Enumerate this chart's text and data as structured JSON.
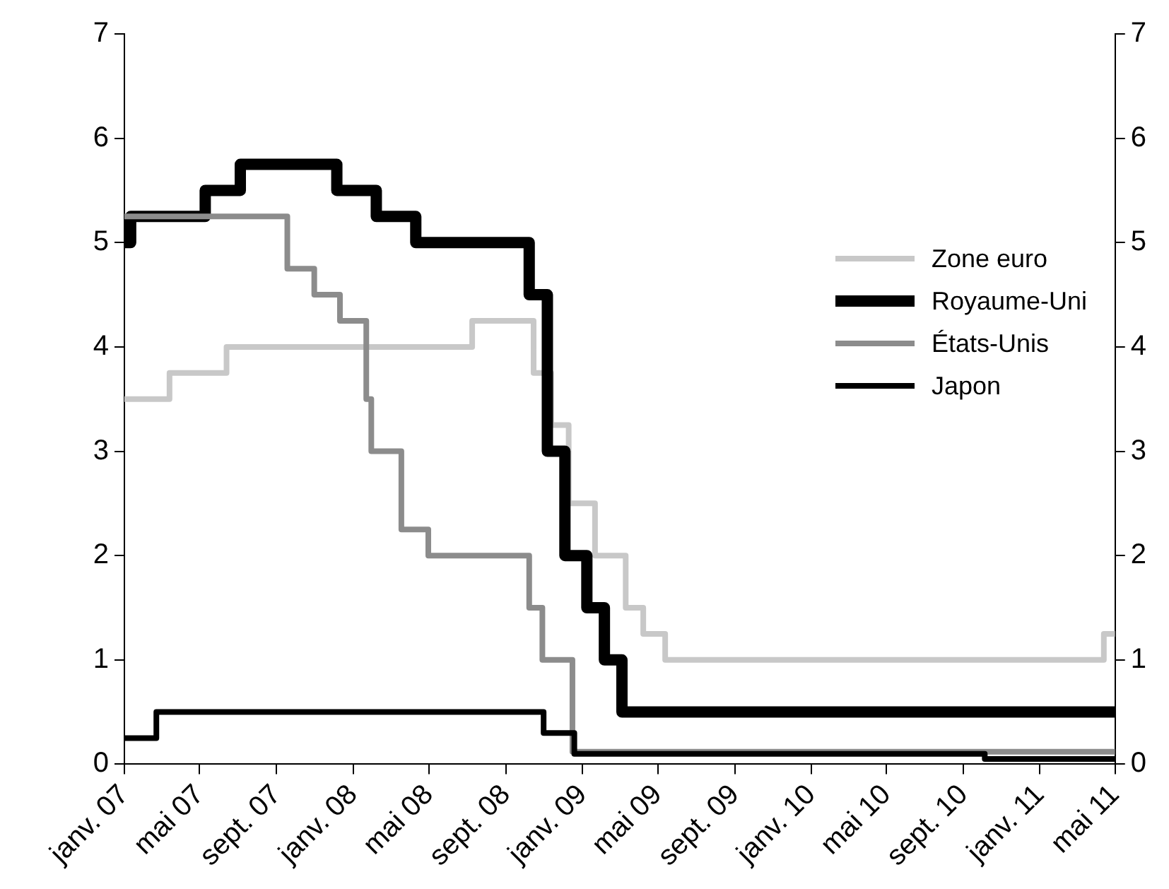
{
  "chart_data": {
    "type": "step",
    "legend": "top right",
    "grid": false,
    "marker": "none",
    "line_style": "solid",
    "xlim": [
      "2007-01-01",
      "2011-05-01"
    ],
    "xticks": [
      {
        "value": "2007-01-01",
        "label": "janv. 07"
      },
      {
        "value": "2007-05-01",
        "label": "mai 07"
      },
      {
        "value": "2007-09-01",
        "label": "sept. 07"
      },
      {
        "value": "2008-01-01",
        "label": "janv. 08"
      },
      {
        "value": "2008-05-01",
        "label": "mai 08"
      },
      {
        "value": "2008-09-01",
        "label": "sept. 08"
      },
      {
        "value": "2009-01-01",
        "label": "janv. 09"
      },
      {
        "value": "2009-05-01",
        "label": "mai 09"
      },
      {
        "value": "2009-09-01",
        "label": "sept. 09"
      },
      {
        "value": "2010-01-01",
        "label": "janv. 10"
      },
      {
        "value": "2010-05-01",
        "label": "mai 10"
      },
      {
        "value": "2010-09-01",
        "label": "sept. 10"
      },
      {
        "value": "2011-01-01",
        "label": "janv. 11"
      },
      {
        "value": "2011-05-01",
        "label": "mai 11"
      }
    ],
    "ylim": [
      0,
      7
    ],
    "yticks": [
      0,
      1,
      2,
      3,
      4,
      5,
      6,
      7
    ],
    "y2lim": [
      0,
      7
    ],
    "y2ticks": [
      0,
      1,
      2,
      3,
      4,
      5,
      6,
      7
    ],
    "series": [
      {
        "name": "Zone euro",
        "color": "#c8c8c8",
        "x": [
          "2007-01-01",
          "2007-03-14",
          "2007-06-13",
          "2008-07-09",
          "2008-10-15",
          "2008-11-12",
          "2008-12-10",
          "2009-01-21",
          "2009-03-11",
          "2009-04-08",
          "2009-05-13",
          "2011-04-13",
          "2011-05-01"
        ],
        "values": [
          3.5,
          3.75,
          4,
          4.25,
          3.75,
          3.25,
          2.5,
          2,
          1.5,
          1.25,
          1,
          1.25,
          1.25
        ]
      },
      {
        "name": "Royaume-Uni",
        "color": "#000000",
        "x": [
          "2007-01-01",
          "2007-01-11",
          "2007-05-10",
          "2007-07-05",
          "2007-12-06",
          "2008-02-07",
          "2008-04-10",
          "2008-10-08",
          "2008-11-06",
          "2008-12-04",
          "2009-01-08",
          "2009-02-05",
          "2009-03-05",
          "2011-05-01"
        ],
        "values": [
          5,
          5.25,
          5.5,
          5.75,
          5.5,
          5.25,
          5,
          4.5,
          3,
          2,
          1.5,
          1,
          0.5,
          0.5
        ]
      },
      {
        "name": "États-Unis",
        "color": "#8c8c8c",
        "x": [
          "2007-01-01",
          "2007-09-18",
          "2007-10-31",
          "2007-12-11",
          "2008-01-22",
          "2008-01-30",
          "2008-03-18",
          "2008-04-30",
          "2008-10-08",
          "2008-10-29",
          "2008-12-16",
          "2011-05-01"
        ],
        "values": [
          5.25,
          4.75,
          4.5,
          4.25,
          3.5,
          3,
          2.25,
          2,
          1.5,
          1,
          0.12,
          0.12
        ]
      },
      {
        "name": "Japon",
        "color": "#000000",
        "x": [
          "2007-01-01",
          "2007-02-21",
          "2008-10-31",
          "2008-12-19",
          "2010-10-05",
          "2011-05-01"
        ],
        "values": [
          0.25,
          0.5,
          0.3,
          0.1,
          0.05,
          0.05
        ]
      }
    ]
  }
}
